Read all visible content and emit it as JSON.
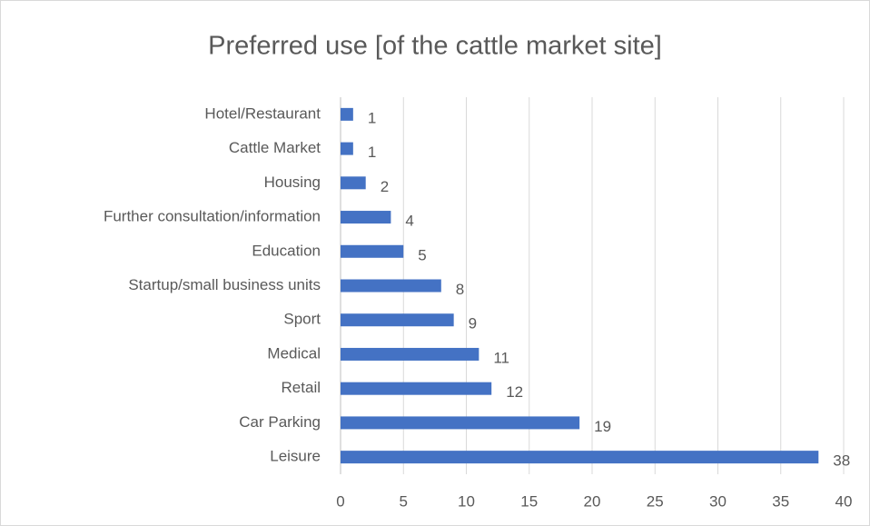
{
  "chart_data": {
    "type": "bar",
    "orientation": "horizontal",
    "title": "Preferred use [of the cattle market site]",
    "categories": [
      "Hotel/Restaurant",
      "Cattle Market",
      "Housing",
      "Further consultation/information",
      "Education",
      "Startup/small business units",
      "Sport",
      "Medical",
      "Retail",
      "Car Parking",
      "Leisure"
    ],
    "values": [
      1,
      1,
      2,
      4,
      5,
      8,
      9,
      11,
      12,
      19,
      38
    ],
    "color": "#4472c4",
    "xlim": [
      0,
      40
    ],
    "xticks": [
      0,
      5,
      10,
      15,
      20,
      25,
      30,
      35,
      40
    ],
    "grid": true
  }
}
